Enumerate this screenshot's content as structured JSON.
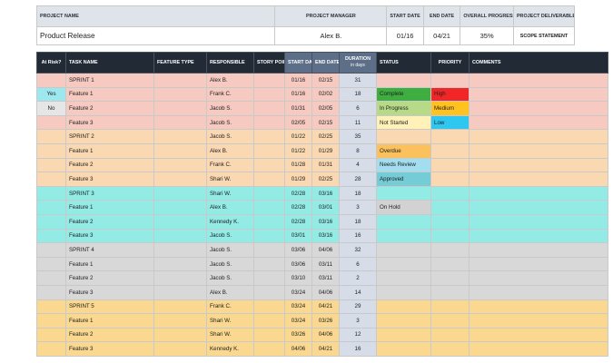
{
  "project": {
    "headers": {
      "name": "PROJECT NAME",
      "manager": "PROJECT MANAGER",
      "start": "START DATE",
      "end": "END DATE",
      "progress": "OVERALL PROGRESS",
      "deliverable": "PROJECT DELIVERABLE"
    },
    "name": "Product Release",
    "manager": "Alex B.",
    "start": "01/16",
    "end": "04/21",
    "progress": "35%",
    "scope_label": "SCOPE STATEMENT"
  },
  "columns": {
    "risk": "At Risk?",
    "task": "TASK NAME",
    "feature": "FEATURE TYPE",
    "responsible": "RESPONSIBLE",
    "points": "STORY POINTS",
    "start": "START DATE",
    "end": "END DATE",
    "duration": "DURATION",
    "duration_sub": "in days",
    "status": "STATUS",
    "priority": "PRIORITY",
    "comments": "COMMENTS"
  },
  "rows": [
    {
      "kind": "sprint",
      "group": "sprint1",
      "task": "SPRINT 1",
      "responsible": "Alex B.",
      "start": "01/16",
      "end": "02/15",
      "duration": "31"
    },
    {
      "kind": "task",
      "group": "sprint1",
      "risk": "Yes",
      "task": "Feature 1",
      "responsible": "Frank C.",
      "start": "01/16",
      "end": "02/02",
      "duration": "18",
      "status": "Complete",
      "status_class": "s-complete",
      "priority": "High",
      "priority_class": "p-high"
    },
    {
      "kind": "task",
      "group": "sprint1",
      "risk": "No",
      "task": "Feature 2",
      "responsible": "Jacob S.",
      "start": "01/31",
      "end": "02/05",
      "duration": "6",
      "status": "In Progress",
      "status_class": "s-progress",
      "priority": "Medium",
      "priority_class": "p-medium"
    },
    {
      "kind": "task",
      "group": "sprint1",
      "risk": "",
      "task": "Feature 3",
      "responsible": "Jacob S.",
      "start": "02/05",
      "end": "02/15",
      "duration": "11",
      "status": "Not Started",
      "status_class": "s-notstarted",
      "priority": "Low",
      "priority_class": "p-low"
    },
    {
      "kind": "sprint",
      "group": "sprint2",
      "task": "SPRINT 2",
      "responsible": "Jacob S.",
      "start": "01/22",
      "end": "02/25",
      "duration": "35"
    },
    {
      "kind": "task",
      "group": "sprint2",
      "risk": "",
      "task": "Feature 1",
      "responsible": "Alex B.",
      "start": "01/22",
      "end": "01/29",
      "duration": "8",
      "status": "Overdue",
      "status_class": "s-overdue",
      "priority": "",
      "priority_class": ""
    },
    {
      "kind": "task",
      "group": "sprint2",
      "risk": "",
      "task": "Feature 2",
      "responsible": "Frank C.",
      "start": "01/28",
      "end": "01/31",
      "duration": "4",
      "status": "Needs Review",
      "status_class": "s-review",
      "priority": "",
      "priority_class": ""
    },
    {
      "kind": "task",
      "group": "sprint2",
      "risk": "",
      "task": "Feature 3",
      "responsible": "Shari W.",
      "start": "01/29",
      "end": "02/25",
      "duration": "28",
      "status": "Approved",
      "status_class": "s-approved",
      "priority": "",
      "priority_class": ""
    },
    {
      "kind": "sprint",
      "group": "sprint3",
      "task": "SPRINT 3",
      "responsible": "Shari W.",
      "start": "02/28",
      "end": "03/16",
      "duration": "18"
    },
    {
      "kind": "task",
      "group": "sprint3",
      "risk": "",
      "task": "Feature 1",
      "responsible": "Alex B.",
      "start": "02/28",
      "end": "03/01",
      "duration": "3",
      "status": "On Hold",
      "status_class": "s-hold",
      "priority": "",
      "priority_class": ""
    },
    {
      "kind": "task",
      "group": "sprint3",
      "risk": "",
      "task": "Feature 2",
      "responsible": "Kennedy K.",
      "start": "02/28",
      "end": "03/16",
      "duration": "18",
      "status": "",
      "status_class": "",
      "priority": "",
      "priority_class": ""
    },
    {
      "kind": "task",
      "group": "sprint3",
      "risk": "",
      "task": "Feature 3",
      "responsible": "Jacob S.",
      "start": "03/01",
      "end": "03/16",
      "duration": "16",
      "status": "",
      "status_class": "",
      "priority": "",
      "priority_class": ""
    },
    {
      "kind": "sprint",
      "group": "sprint4",
      "task": "SPRINT 4",
      "responsible": "Jacob S.",
      "start": "03/06",
      "end": "04/06",
      "duration": "32"
    },
    {
      "kind": "task",
      "group": "sprint4",
      "risk": "",
      "task": "Feature 1",
      "responsible": "Jacob S.",
      "start": "03/06",
      "end": "03/11",
      "duration": "6",
      "status": "",
      "status_class": "",
      "priority": "",
      "priority_class": ""
    },
    {
      "kind": "task",
      "group": "sprint4",
      "risk": "",
      "task": "Feature 2",
      "responsible": "Jacob S.",
      "start": "03/10",
      "end": "03/11",
      "duration": "2",
      "status": "",
      "status_class": "",
      "priority": "",
      "priority_class": ""
    },
    {
      "kind": "task",
      "group": "sprint4",
      "risk": "",
      "task": "Feature 3",
      "responsible": "Alex B.",
      "start": "03/24",
      "end": "04/06",
      "duration": "14",
      "status": "",
      "status_class": "",
      "priority": "",
      "priority_class": ""
    },
    {
      "kind": "sprint",
      "group": "sprint5",
      "task": "SPRINT 5",
      "responsible": "Frank C.",
      "start": "03/24",
      "end": "04/21",
      "duration": "29"
    },
    {
      "kind": "task",
      "group": "sprint5",
      "risk": "",
      "task": "Feature 1",
      "responsible": "Shari W.",
      "start": "03/24",
      "end": "03/26",
      "duration": "3",
      "status": "",
      "status_class": "",
      "priority": "",
      "priority_class": ""
    },
    {
      "kind": "task",
      "group": "sprint5",
      "risk": "",
      "task": "Feature 2",
      "responsible": "Shari W.",
      "start": "03/26",
      "end": "04/06",
      "duration": "12",
      "status": "",
      "status_class": "",
      "priority": "",
      "priority_class": ""
    },
    {
      "kind": "task",
      "group": "sprint5",
      "risk": "",
      "task": "Feature 3",
      "responsible": "Kennedy K.",
      "start": "04/06",
      "end": "04/21",
      "duration": "16",
      "status": "",
      "status_class": "",
      "priority": "",
      "priority_class": ""
    }
  ]
}
